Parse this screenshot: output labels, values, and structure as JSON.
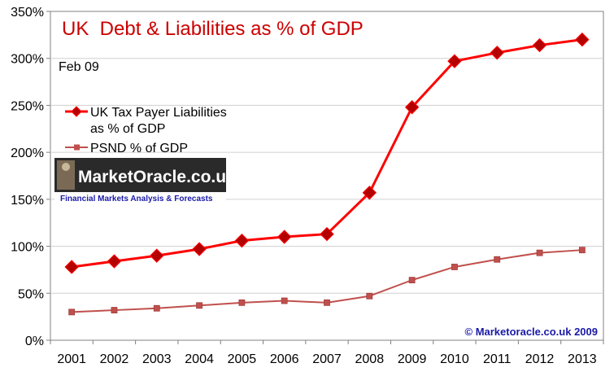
{
  "chart_data": {
    "type": "line",
    "title": "UK  Debt & Liabilities as % of GDP",
    "subtitle": "Feb 09",
    "categories": [
      "2001",
      "2002",
      "2003",
      "2004",
      "2005",
      "2006",
      "2007",
      "2008",
      "2009",
      "2010",
      "2011",
      "2012",
      "2013"
    ],
    "series": [
      {
        "name": "UK Tax Payer Liabilities as % of GDP",
        "name_lines": [
          "UK Tax Payer Liabilities",
          "as % of GDP"
        ],
        "color": "#ff0000",
        "marker_color": "#b50000",
        "marker": "diamond",
        "values": [
          78,
          84,
          90,
          97,
          106,
          110,
          113,
          157,
          248,
          297,
          306,
          314,
          320
        ]
      },
      {
        "name": "PSND % of GDP",
        "name_lines": [
          "PSND % of GDP"
        ],
        "color": "#c0504d",
        "marker_color": "#c0504d",
        "marker": "square",
        "values": [
          30,
          32,
          34,
          37,
          40,
          42,
          40,
          47,
          64,
          78,
          86,
          93,
          96
        ]
      }
    ],
    "ylim": [
      0,
      350
    ],
    "yticks": [
      0,
      50,
      100,
      150,
      200,
      250,
      300,
      350
    ],
    "ytick_labels": [
      "0%",
      "50%",
      "100%",
      "150%",
      "200%",
      "250%",
      "300%",
      "350%"
    ],
    "xlabel": "",
    "ylabel": "",
    "grid": true,
    "legend_position": "upper-left"
  },
  "watermark": {
    "logo_text": "MarketOracle.co.uk",
    "logo_tagline": "Financial Markets Analysis & Forecasts"
  },
  "copyright": "© Marketoracle.co.uk 2009"
}
